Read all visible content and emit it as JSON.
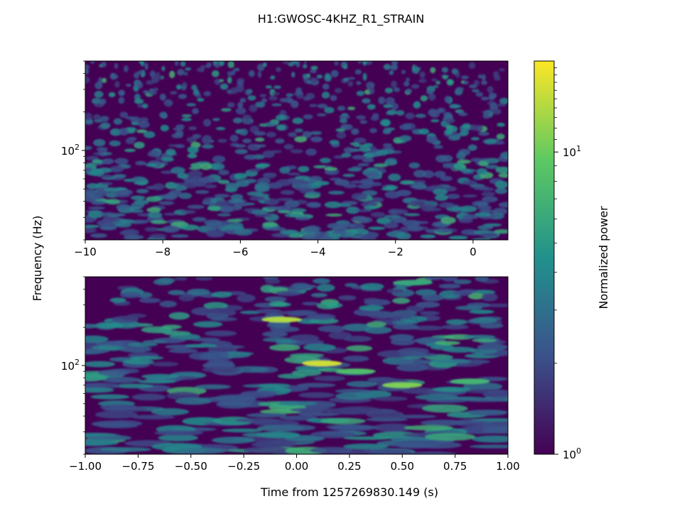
{
  "chart_data": {
    "type": "heatmap",
    "title": "H1:GWOSC-4KHZ_R1_STRAIN",
    "shared_ylabel": "Frequency (Hz)",
    "xlabel": "Time from 1257269830.149 (s)",
    "colorbar": {
      "label": "Normalized power",
      "scale": "log",
      "range": [
        1,
        20
      ],
      "tick_labels": [
        "10^0",
        "10^1"
      ],
      "tick_values": [
        1,
        10
      ],
      "colormap": "viridis",
      "colors": [
        "#440154",
        "#3b528b",
        "#21918c",
        "#5ec962",
        "#fde725"
      ]
    },
    "panels": [
      {
        "name": "top",
        "xlim": [
          -10,
          0.9
        ],
        "ylim": [
          20,
          500
        ],
        "yscale": "log",
        "xticks": [
          -10,
          -8,
          -6,
          -4,
          -2,
          0
        ],
        "xtick_labels": [
          "−10",
          "−8",
          "−6",
          "−4",
          "−2",
          "0"
        ],
        "ytick_labels": [
          "10^2"
        ],
        "ytick_values": [
          100
        ]
      },
      {
        "name": "bottom",
        "xlim": [
          -1.0,
          1.0
        ],
        "ylim": [
          20,
          500
        ],
        "yscale": "log",
        "xticks": [
          -1.0,
          -0.75,
          -0.5,
          -0.25,
          0.0,
          0.25,
          0.5,
          0.75,
          1.0
        ],
        "xtick_labels": [
          "−1.00",
          "−0.75",
          "−0.50",
          "−0.25",
          "0.00",
          "0.25",
          "0.50",
          "0.75",
          "1.00"
        ],
        "ytick_labels": [
          "10^2"
        ],
        "ytick_values": [
          100
        ],
        "highlights": [
          {
            "time": -0.07,
            "freq": 230,
            "power": 14
          },
          {
            "time": 0.12,
            "freq": 104,
            "power": 16
          },
          {
            "time": 0.28,
            "freq": 90,
            "power": 8
          },
          {
            "time": 0.5,
            "freq": 70,
            "power": 11
          },
          {
            "time": 0.82,
            "freq": 75,
            "power": 7
          },
          {
            "time": 0.55,
            "freq": 450,
            "power": 6
          }
        ]
      }
    ]
  }
}
